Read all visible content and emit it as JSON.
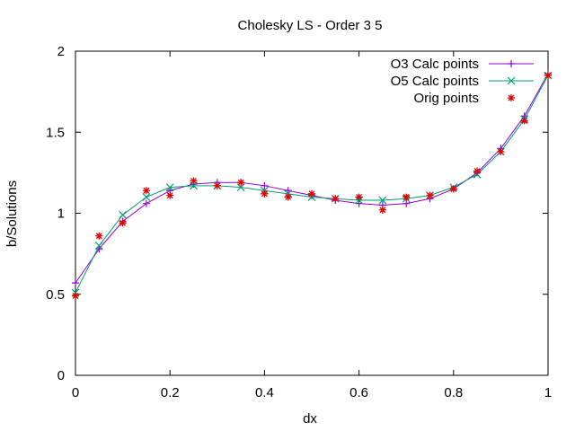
{
  "chart_data": {
    "type": "line",
    "title": "Cholesky LS - Order 3   5",
    "xlabel": "dx",
    "ylabel": "b/Solutions",
    "xlim": [
      0,
      1
    ],
    "ylim": [
      0,
      2
    ],
    "xticks": [
      "0",
      "0.2",
      "0.4",
      "0.6",
      "0.8",
      "1"
    ],
    "yticks": [
      "0",
      "0.5",
      "1",
      "1.5",
      "2"
    ],
    "grid": false,
    "legend_position": "top-right",
    "x": [
      0,
      0.05,
      0.1,
      0.15,
      0.2,
      0.25,
      0.3,
      0.35,
      0.4,
      0.45,
      0.5,
      0.55,
      0.6,
      0.65,
      0.7,
      0.75,
      0.8,
      0.85,
      0.9,
      0.95,
      1.0
    ],
    "series": [
      {
        "name": "O3 Calc points",
        "color": "#9400d3",
        "marker": "plus",
        "values": [
          0.57,
          0.78,
          0.95,
          1.06,
          1.14,
          1.18,
          1.19,
          1.19,
          1.17,
          1.14,
          1.11,
          1.08,
          1.06,
          1.05,
          1.06,
          1.09,
          1.15,
          1.25,
          1.4,
          1.6,
          1.86
        ]
      },
      {
        "name": "O5 Calc points",
        "color": "#009e73",
        "marker": "cross",
        "values": [
          0.51,
          0.8,
          0.99,
          1.1,
          1.16,
          1.17,
          1.17,
          1.16,
          1.14,
          1.12,
          1.1,
          1.09,
          1.08,
          1.08,
          1.09,
          1.11,
          1.16,
          1.24,
          1.38,
          1.58,
          1.85
        ]
      },
      {
        "name": "Orig points",
        "color": "#e00000",
        "marker": "star",
        "values": [
          0.49,
          0.86,
          0.94,
          1.14,
          1.11,
          1.2,
          1.17,
          1.19,
          1.12,
          1.1,
          1.12,
          1.09,
          1.1,
          1.02,
          1.1,
          1.11,
          1.15,
          1.26,
          1.38,
          1.57,
          1.85
        ]
      }
    ]
  }
}
